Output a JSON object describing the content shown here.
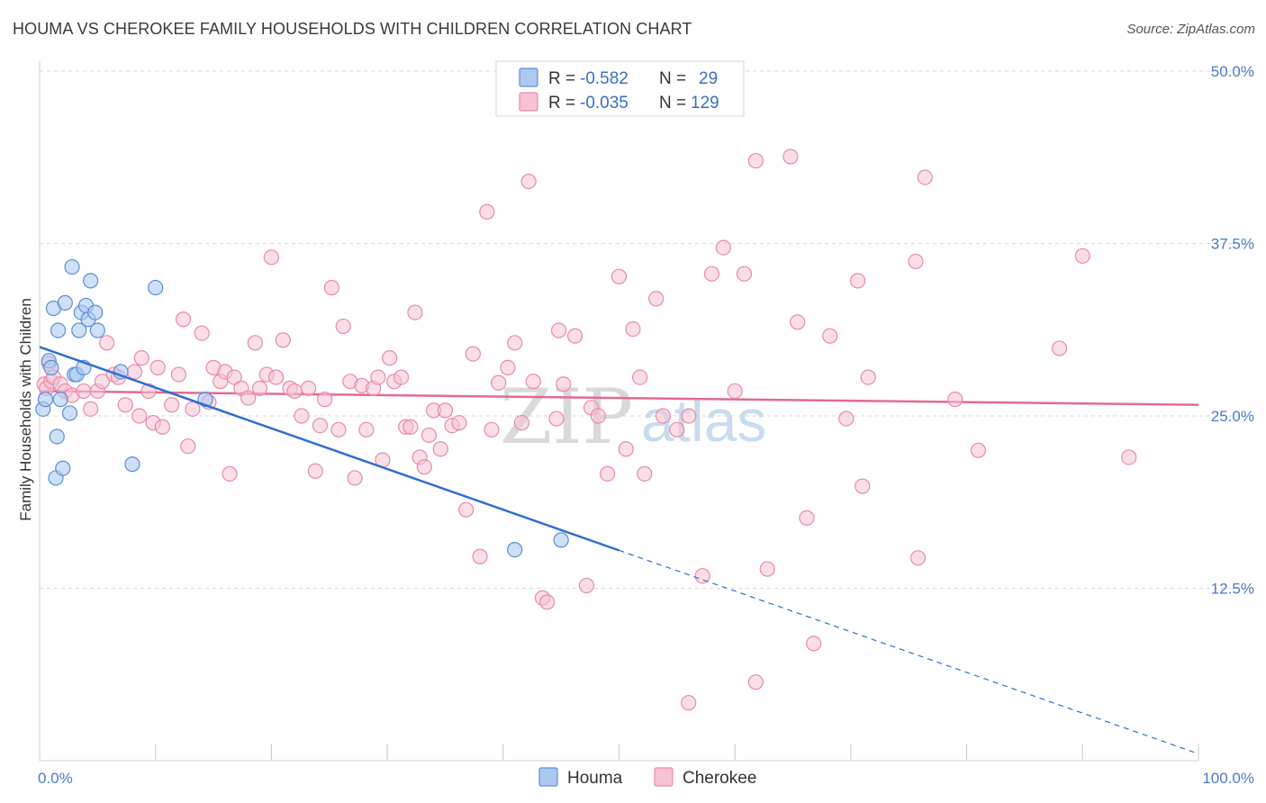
{
  "title": "HOUMA VS CHEROKEE FAMILY HOUSEHOLDS WITH CHILDREN CORRELATION CHART",
  "source": "Source: ZipAtlas.com",
  "watermark": {
    "zip": "ZIP",
    "atlas": "atlas"
  },
  "colors": {
    "houma_fill": "#aec9f0",
    "houma_stroke": "#5d8fd6",
    "houma_line": "#2f6fd0",
    "cherokee_fill": "#f6c3d4",
    "cherokee_stroke": "#e88aaa",
    "cherokee_line": "#e36a94",
    "grid": "#d8d8d8",
    "tick_text": "#4a7cc7"
  },
  "legend": {
    "houma": {
      "r_label": "R =",
      "r_value": "-0.582",
      "n_label": "N =",
      "n_value": "29"
    },
    "cherokee": {
      "r_label": "R =",
      "r_value": "-0.035",
      "n_label": "N =",
      "n_value": "129"
    }
  },
  "chart_data": {
    "type": "scatter",
    "title": "HOUMA VS CHEROKEE FAMILY HOUSEHOLDS WITH CHILDREN CORRELATION CHART",
    "xlabel": "",
    "ylabel": "Family Households with Children",
    "xlim": [
      0,
      100
    ],
    "ylim": [
      0,
      50
    ],
    "x_tick_labels": [
      "0.0%",
      "100.0%"
    ],
    "y_ticks": [
      12.5,
      25.0,
      37.5,
      50.0
    ],
    "y_tick_labels": [
      "12.5%",
      "25.0%",
      "37.5%",
      "50.0%"
    ],
    "legend_entries": [
      "Houma",
      "Cherokee"
    ],
    "series": [
      {
        "name": "Houma",
        "points": [
          [
            0.3,
            25.5
          ],
          [
            0.5,
            26.2
          ],
          [
            0.8,
            29.0
          ],
          [
            1.0,
            28.5
          ],
          [
            1.2,
            32.8
          ],
          [
            1.4,
            20.5
          ],
          [
            1.5,
            23.5
          ],
          [
            1.6,
            31.2
          ],
          [
            1.8,
            26.2
          ],
          [
            2.0,
            21.2
          ],
          [
            2.2,
            33.2
          ],
          [
            2.6,
            25.2
          ],
          [
            2.8,
            35.8
          ],
          [
            3.0,
            28.0
          ],
          [
            3.2,
            28.0
          ],
          [
            3.4,
            31.2
          ],
          [
            3.6,
            32.5
          ],
          [
            3.8,
            28.5
          ],
          [
            4.0,
            33.0
          ],
          [
            4.2,
            32.0
          ],
          [
            4.4,
            34.8
          ],
          [
            4.8,
            32.5
          ],
          [
            5.0,
            31.2
          ],
          [
            7.0,
            28.2
          ],
          [
            8.0,
            21.5
          ],
          [
            10.0,
            34.3
          ],
          [
            14.3,
            26.2
          ],
          [
            41.0,
            15.3
          ],
          [
            45.0,
            16.0
          ]
        ],
        "trend": {
          "x_start": 0,
          "y_start": 30.0,
          "x_solid_end": 50,
          "x_end": 100,
          "y_end": 0.5
        }
      },
      {
        "name": "Cherokee",
        "points": [
          [
            0.4,
            27.3
          ],
          [
            0.6,
            27.0
          ],
          [
            0.8,
            28.8
          ],
          [
            1.0,
            27.5
          ],
          [
            1.2,
            27.8
          ],
          [
            1.8,
            27.3
          ],
          [
            2.2,
            26.8
          ],
          [
            2.8,
            26.5
          ],
          [
            3.8,
            26.8
          ],
          [
            4.4,
            25.5
          ],
          [
            5.0,
            26.8
          ],
          [
            5.4,
            27.5
          ],
          [
            5.8,
            30.3
          ],
          [
            6.4,
            28.0
          ],
          [
            6.8,
            27.8
          ],
          [
            7.4,
            25.8
          ],
          [
            8.2,
            28.2
          ],
          [
            8.6,
            25.0
          ],
          [
            8.8,
            29.2
          ],
          [
            9.4,
            26.8
          ],
          [
            9.8,
            24.5
          ],
          [
            10.2,
            28.5
          ],
          [
            10.6,
            24.2
          ],
          [
            11.4,
            25.8
          ],
          [
            12.0,
            28.0
          ],
          [
            12.4,
            32.0
          ],
          [
            12.8,
            22.8
          ],
          [
            13.2,
            25.5
          ],
          [
            14.0,
            31.0
          ],
          [
            14.6,
            26.0
          ],
          [
            15.0,
            28.5
          ],
          [
            15.6,
            27.5
          ],
          [
            16.0,
            28.2
          ],
          [
            16.4,
            20.8
          ],
          [
            16.8,
            27.8
          ],
          [
            17.4,
            27.0
          ],
          [
            18.0,
            26.3
          ],
          [
            18.6,
            30.3
          ],
          [
            19.0,
            27.0
          ],
          [
            19.6,
            28.0
          ],
          [
            20.0,
            36.5
          ],
          [
            20.4,
            27.8
          ],
          [
            21.0,
            30.5
          ],
          [
            21.6,
            27.0
          ],
          [
            22.0,
            26.8
          ],
          [
            22.6,
            25.0
          ],
          [
            23.2,
            27.0
          ],
          [
            23.8,
            21.0
          ],
          [
            24.2,
            24.3
          ],
          [
            24.6,
            26.2
          ],
          [
            25.2,
            34.3
          ],
          [
            25.8,
            24.0
          ],
          [
            26.2,
            31.5
          ],
          [
            26.8,
            27.5
          ],
          [
            27.2,
            20.5
          ],
          [
            27.8,
            27.2
          ],
          [
            28.2,
            24.0
          ],
          [
            28.8,
            27.0
          ],
          [
            29.2,
            27.8
          ],
          [
            29.6,
            21.8
          ],
          [
            30.2,
            29.2
          ],
          [
            30.6,
            27.5
          ],
          [
            31.2,
            27.8
          ],
          [
            31.6,
            24.2
          ],
          [
            32.0,
            24.2
          ],
          [
            32.4,
            32.5
          ],
          [
            32.8,
            22.0
          ],
          [
            33.2,
            21.3
          ],
          [
            33.6,
            23.6
          ],
          [
            34.0,
            25.4
          ],
          [
            34.6,
            22.6
          ],
          [
            35.0,
            25.4
          ],
          [
            35.6,
            24.3
          ],
          [
            36.2,
            24.5
          ],
          [
            36.8,
            18.2
          ],
          [
            37.4,
            29.5
          ],
          [
            38.0,
            14.8
          ],
          [
            38.6,
            39.8
          ],
          [
            39.0,
            24.0
          ],
          [
            39.6,
            27.4
          ],
          [
            40.4,
            28.5
          ],
          [
            41.0,
            30.3
          ],
          [
            41.6,
            24.5
          ],
          [
            42.2,
            42.0
          ],
          [
            42.6,
            27.5
          ],
          [
            43.4,
            11.8
          ],
          [
            43.8,
            11.5
          ],
          [
            44.6,
            24.8
          ],
          [
            44.8,
            31.2
          ],
          [
            45.2,
            27.3
          ],
          [
            46.2,
            30.8
          ],
          [
            47.2,
            12.7
          ],
          [
            47.6,
            25.6
          ],
          [
            48.2,
            25.0
          ],
          [
            49.0,
            20.8
          ],
          [
            50.0,
            35.1
          ],
          [
            50.6,
            22.6
          ],
          [
            51.2,
            31.3
          ],
          [
            51.8,
            27.8
          ],
          [
            52.2,
            20.8
          ],
          [
            53.2,
            33.5
          ],
          [
            53.8,
            25.0
          ],
          [
            55.0,
            24.0
          ],
          [
            56.0,
            25.0
          ],
          [
            58.0,
            35.3
          ],
          [
            59.0,
            37.2
          ],
          [
            60.0,
            26.8
          ],
          [
            60.8,
            35.3
          ],
          [
            61.8,
            43.5
          ],
          [
            62.8,
            13.9
          ],
          [
            64.8,
            43.8
          ],
          [
            65.4,
            31.8
          ],
          [
            66.2,
            17.6
          ],
          [
            66.8,
            8.5
          ],
          [
            68.2,
            30.8
          ],
          [
            69.6,
            24.8
          ],
          [
            70.6,
            34.8
          ],
          [
            71.0,
            19.9
          ],
          [
            71.5,
            27.8
          ],
          [
            75.6,
            36.2
          ],
          [
            75.8,
            14.7
          ],
          [
            76.4,
            42.3
          ],
          [
            79.0,
            26.2
          ],
          [
            81.0,
            22.5
          ],
          [
            88.0,
            29.9
          ],
          [
            90.0,
            36.6
          ],
          [
            94.0,
            22.0
          ],
          [
            56.0,
            4.2
          ],
          [
            61.8,
            5.7
          ],
          [
            57.2,
            13.4
          ]
        ],
        "trend": {
          "x_start": 0,
          "y_start": 26.8,
          "x_end": 100,
          "y_end": 25.8
        }
      }
    ]
  }
}
